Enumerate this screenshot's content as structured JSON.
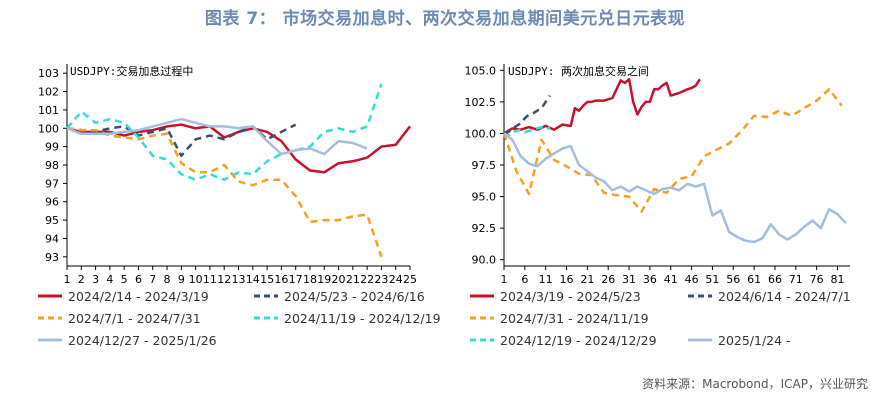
{
  "title": "图表 7： 市场交易加息时、两次交易加息期间美元兑日元表现",
  "source": "资料来源：Macrobond，ICAP，兴业研究",
  "chart_data": [
    {
      "type": "line",
      "annotation": "USDJPY:交易加息过程中",
      "ylim": [
        92.5,
        103.5
      ],
      "yticks": [
        93,
        94,
        95,
        96,
        97,
        98,
        99,
        100,
        101,
        102,
        103
      ],
      "xticks": [
        1,
        2,
        3,
        4,
        5,
        6,
        7,
        8,
        9,
        10,
        11,
        12,
        13,
        14,
        15,
        16,
        17,
        18,
        19,
        20,
        21,
        22,
        23,
        24,
        25
      ],
      "series": [
        {
          "name": "2024/2/14 - 2024/3/19",
          "color": "#c8102e",
          "dash": "solid",
          "x": [
            1,
            2,
            3,
            4,
            5,
            6,
            7,
            8,
            9,
            10,
            11,
            12,
            13,
            14,
            15,
            16,
            17,
            18,
            19,
            20,
            21,
            22,
            23,
            24,
            25
          ],
          "y": [
            100,
            99.8,
            99.8,
            99.8,
            99.6,
            99.8,
            99.9,
            100.1,
            100.2,
            100,
            100.1,
            99.5,
            99.8,
            100,
            99.8,
            99.3,
            98.3,
            97.7,
            97.6,
            98.1,
            98.2,
            98.4,
            99,
            99.1,
            100.1
          ]
        },
        {
          "name": "2024/5/23 - 2024/6/16",
          "color": "#3d4f6e",
          "dash": "dashed",
          "x": [
            1,
            2,
            3,
            4,
            5,
            6,
            7,
            8,
            9,
            10,
            11,
            12,
            13,
            14,
            15,
            16,
            17
          ],
          "y": [
            100,
            99.9,
            99.8,
            100,
            100.1,
            99.6,
            99.8,
            100,
            98.5,
            99.4,
            99.6,
            99.4,
            99.8,
            100.1,
            99.4,
            99.8,
            100.2
          ]
        },
        {
          "name": "2024/7/1 - 2024/7/31",
          "color": "#f5a023",
          "dash": "dashed",
          "x": [
            1,
            2,
            3,
            4,
            5,
            6,
            7,
            8,
            9,
            10,
            11,
            12,
            13,
            14,
            15,
            16,
            17,
            18,
            19,
            20,
            21,
            22,
            23
          ],
          "y": [
            100,
            99.9,
            99.9,
            99.6,
            99.5,
            99.4,
            99.6,
            99.7,
            98.1,
            97.6,
            97.6,
            98,
            97.1,
            96.9,
            97.2,
            97.2,
            96.3,
            94.9,
            95,
            95,
            95.2,
            95.3,
            93
          ]
        },
        {
          "name": "2024/11/19 - 2024/12/19",
          "color": "#33dcd4",
          "dash": "dashed",
          "x": [
            1,
            2,
            3,
            4,
            5,
            6,
            7,
            8,
            9,
            10,
            11,
            12,
            13,
            14,
            15,
            16,
            17,
            18,
            19,
            20,
            21,
            22,
            23
          ],
          "y": [
            100,
            100.9,
            100.3,
            100.5,
            100.3,
            99.5,
            98.5,
            98.3,
            97.5,
            97.2,
            97.5,
            97.2,
            97.6,
            97.5,
            98.2,
            98.6,
            98.8,
            99,
            99.8,
            100,
            99.8,
            100.1,
            102.4
          ]
        },
        {
          "name": "2024/12/27 - 2025/1/26",
          "color": "#a3bfdd",
          "dash": "solid",
          "x": [
            1,
            2,
            3,
            4,
            5,
            6,
            7,
            8,
            9,
            10,
            11,
            12,
            13,
            14,
            15,
            16,
            17,
            18,
            19,
            20,
            21,
            22
          ],
          "y": [
            100,
            99.7,
            99.7,
            99.7,
            99.8,
            99.9,
            100.1,
            100.3,
            100.5,
            100.3,
            100.1,
            100.1,
            100,
            100.1,
            99.3,
            98.6,
            98.8,
            98.9,
            98.6,
            99.3,
            99.2,
            98.9
          ]
        }
      ]
    },
    {
      "type": "line",
      "annotation": "USDJPY: 两次加息交易之间",
      "ylim": [
        89.5,
        105.5
      ],
      "yticks": [
        90.0,
        92.5,
        95.0,
        97.5,
        100.0,
        102.5,
        105.0
      ],
      "xticks": [
        1,
        6,
        11,
        16,
        21,
        26,
        31,
        36,
        41,
        46,
        51,
        56,
        61,
        66,
        71,
        76,
        81
      ],
      "series": [
        {
          "name": "2024/3/19 - 2024/5/23",
          "color": "#c8102e",
          "dash": "solid",
          "x": [
            1,
            3,
            5,
            7,
            9,
            11,
            13,
            15,
            17,
            18,
            19,
            20,
            21,
            22,
            23,
            25,
            27,
            29,
            30,
            31,
            32,
            33,
            34,
            35,
            36,
            37,
            38,
            39,
            40,
            41,
            43,
            45,
            46,
            47,
            48
          ],
          "y": [
            100,
            100.4,
            100.3,
            100.5,
            100.3,
            100.6,
            100.3,
            100.7,
            100.6,
            102,
            101.8,
            102.2,
            102.5,
            102.5,
            102.6,
            102.6,
            102.8,
            104.2,
            104,
            104.3,
            102.5,
            101.5,
            102.1,
            102.5,
            102.5,
            103.5,
            103.5,
            103.8,
            104,
            103,
            103.2,
            103.5,
            103.6,
            103.8,
            104.3
          ]
        },
        {
          "name": "2024/6/14 - 2024/7/1",
          "color": "#3d4f6e",
          "dash": "dashed",
          "x": [
            1,
            2,
            3,
            4,
            5,
            6,
            7,
            8,
            9,
            10,
            11,
            12
          ],
          "y": [
            100,
            100.1,
            100.4,
            100.6,
            100.8,
            101.2,
            101.5,
            101.6,
            101.8,
            102.0,
            102.5,
            103
          ]
        },
        {
          "name": "2024/7/31 - 2024/11/19",
          "color": "#f5a023",
          "dash": "dashed",
          "x": [
            1,
            4,
            7,
            10,
            13,
            16,
            19,
            22,
            25,
            28,
            31,
            34,
            37,
            40,
            43,
            46,
            49,
            52,
            55,
            58,
            61,
            64,
            67,
            70,
            73,
            76,
            79,
            82
          ],
          "y": [
            100,
            97,
            95.2,
            99.5,
            97.9,
            97.4,
            96.8,
            96.7,
            95.3,
            95.1,
            95,
            93.8,
            95.6,
            95.3,
            96.4,
            96.6,
            98.2,
            98.7,
            99.2,
            100.2,
            101.4,
            101.3,
            101.8,
            101.4,
            102,
            102.6,
            103.5,
            102.2
          ]
        },
        {
          "name": "2024/12/19 - 2024/12/29",
          "color": "#33dcd4",
          "dash": "dashed",
          "x": [
            1,
            2,
            3,
            4,
            5,
            6,
            7,
            8,
            9,
            10,
            11,
            12
          ],
          "y": [
            100,
            99.8,
            100.1,
            100.2,
            100.3,
            100.1,
            100.2,
            100.3,
            100.4,
            100.5,
            100.3,
            100.5
          ]
        },
        {
          "name": "2025/1/24 -",
          "color": "#a3bfdd",
          "dash": "solid",
          "x": [
            1,
            3,
            5,
            7,
            9,
            11,
            13,
            15,
            17,
            19,
            21,
            23,
            25,
            27,
            29,
            31,
            33,
            35,
            37,
            39,
            41,
            43,
            45,
            47,
            49,
            51,
            53,
            55,
            57,
            59,
            61,
            63,
            65,
            67,
            69,
            71,
            73,
            75,
            77,
            79,
            81,
            83
          ],
          "y": [
            100,
            99.5,
            98.2,
            97.6,
            97.4,
            98,
            98.4,
            98.8,
            99,
            97.5,
            97,
            96.5,
            96.2,
            95.5,
            95.8,
            95.4,
            95.8,
            95.5,
            95.2,
            95.6,
            95.7,
            95.5,
            96,
            95.8,
            96,
            93.5,
            93.9,
            92.2,
            91.8,
            91.5,
            91.4,
            91.7,
            92.8,
            92,
            91.6,
            92,
            92.6,
            93.1,
            92.5,
            94,
            93.6,
            92.9
          ]
        }
      ]
    }
  ]
}
